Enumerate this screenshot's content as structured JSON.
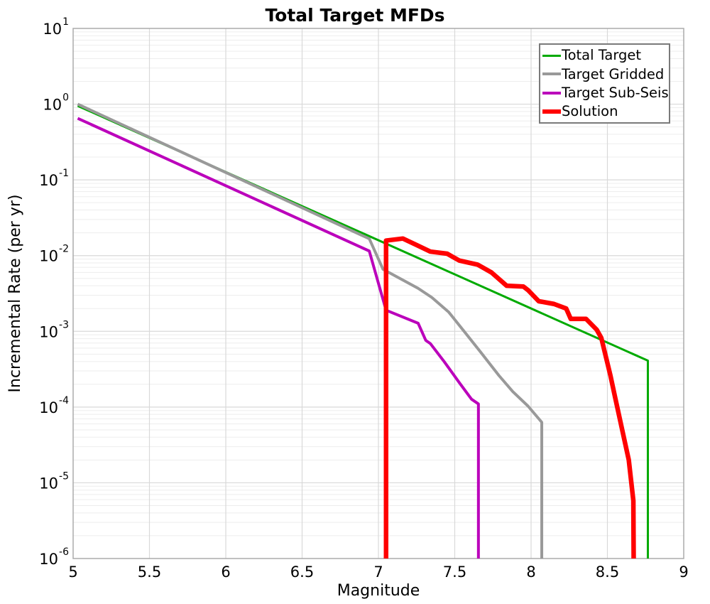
{
  "figure_title": "Total Target MFDs",
  "axes": {
    "x": {
      "label": "Magnitude",
      "tick_labels": [
        "5",
        "5.5",
        "6",
        "6.5",
        "7",
        "7.5",
        "8",
        "8.5",
        "9"
      ],
      "tick_values": [
        5,
        5.5,
        6,
        6.5,
        7,
        7.5,
        8,
        8.5,
        9
      ]
    },
    "y": {
      "label": "Incremental Rate (per yr)",
      "scale": "log",
      "tick_base": "10",
      "tick_exponents": [
        "1",
        "0",
        "-1",
        "-2",
        "-3",
        "-4",
        "-5",
        "-6"
      ]
    }
  },
  "colors": {
    "background": "#ffffff",
    "grid_major": "#d9d9d9",
    "grid_minor": "#ededed",
    "spine": "#ababab",
    "text": "#000000",
    "legend_border": "#7a7a7a"
  },
  "chart_data": {
    "type": "line",
    "title": "Total Target MFDs",
    "xlabel": "Magnitude",
    "ylabel": "Incremental Rate (per yr)",
    "xlim": [
      5,
      9
    ],
    "ylim": [
      1e-06,
      10
    ],
    "yscale": "log",
    "grid": true,
    "legend_position": "top-right",
    "series": [
      {
        "name": "Total Target",
        "color": "#00aa00",
        "line_width": 3,
        "swatch_height": 3,
        "points": [
          [
            5.03,
            0.95
          ],
          [
            8.765,
            0.00041
          ],
          [
            8.765,
            1e-06
          ]
        ]
      },
      {
        "name": "Target Gridded",
        "color": "#999999",
        "line_width": 4,
        "swatch_height": 4,
        "points": [
          [
            5.03,
            1.0
          ],
          [
            6.94,
            0.0167
          ],
          [
            7.03,
            0.0066
          ],
          [
            7.26,
            0.0037
          ],
          [
            7.35,
            0.0028
          ],
          [
            7.46,
            0.0018
          ],
          [
            7.57,
            0.00095
          ],
          [
            7.67,
            0.00053
          ],
          [
            7.79,
            0.00026
          ],
          [
            7.88,
            0.00016
          ],
          [
            7.98,
            0.000103
          ],
          [
            8.07,
            6.3e-05
          ],
          [
            8.07,
            1e-06
          ]
        ]
      },
      {
        "name": "Target Sub-Seis",
        "color": "#bb00bb",
        "line_width": 4,
        "swatch_height": 4,
        "points": [
          [
            5.03,
            0.65
          ],
          [
            6.94,
            0.0115
          ],
          [
            7.05,
            0.0019
          ],
          [
            7.26,
            0.00128
          ],
          [
            7.31,
            0.00076
          ],
          [
            7.34,
            0.00069
          ],
          [
            7.43,
            0.0004
          ],
          [
            7.53,
            0.00021
          ],
          [
            7.61,
            0.000127
          ],
          [
            7.655,
            0.00011
          ],
          [
            7.655,
            1e-06
          ]
        ]
      },
      {
        "name": "Solution",
        "color": "#ff0000",
        "line_width": 6.5,
        "swatch_height": 6,
        "points": [
          [
            7.05,
            1e-06
          ],
          [
            7.05,
            0.0158
          ],
          [
            7.16,
            0.0168
          ],
          [
            7.25,
            0.0138
          ],
          [
            7.34,
            0.0113
          ],
          [
            7.45,
            0.0106
          ],
          [
            7.53,
            0.0086
          ],
          [
            7.65,
            0.0076
          ],
          [
            7.74,
            0.006
          ],
          [
            7.84,
            0.004
          ],
          [
            7.95,
            0.0039
          ],
          [
            7.98,
            0.0035
          ],
          [
            8.05,
            0.0025
          ],
          [
            8.15,
            0.0023
          ],
          [
            8.23,
            0.002
          ],
          [
            8.26,
            0.00146
          ],
          [
            8.36,
            0.00146
          ],
          [
            8.43,
            0.00105
          ],
          [
            8.46,
            0.00082
          ],
          [
            8.52,
            0.00026
          ],
          [
            8.55,
            0.000136
          ],
          [
            8.64,
            2e-05
          ],
          [
            8.67,
            5.8e-06
          ],
          [
            8.672,
            1e-06
          ]
        ]
      }
    ]
  }
}
